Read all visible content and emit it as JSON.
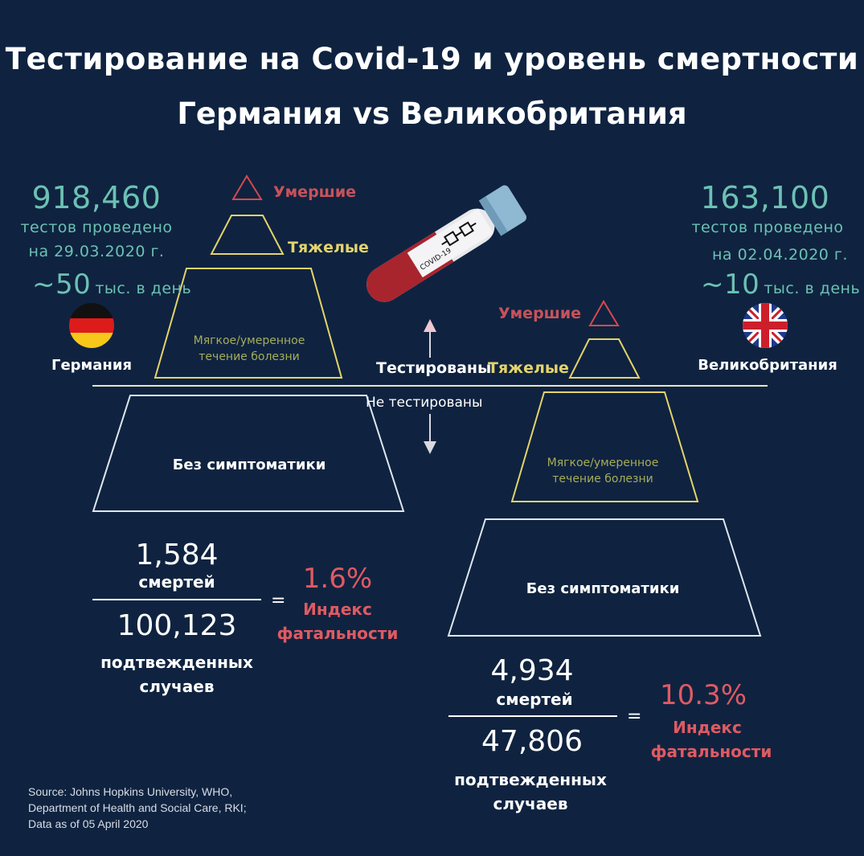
{
  "title": {
    "line1": "Тестирование на Covid-19 и уровень смертности",
    "line2": "Германия vs Великобритания"
  },
  "germany": {
    "tests_number": "918,460",
    "tests_label": "тестов проведено",
    "tests_date": "на 29.03.2020 г.",
    "per_day_prefix": "~50",
    "per_day_suffix": "тыс. в день",
    "country": "Германия",
    "pyramid": {
      "dead": "Умершие",
      "severe": "Тяжелые",
      "mild": "Мягкое/умеренное\nтечение болезни",
      "asymptomatic": "Без симптоматики"
    },
    "deaths_number": "1,584",
    "deaths_label": "смертей",
    "cases_number": "100,123",
    "cases_label_1": "подтвежденных",
    "cases_label_2": "случаев",
    "equals": "=",
    "rate": "1.6%",
    "rate_label_1": "Индекс",
    "rate_label_2": "фатальности"
  },
  "uk": {
    "tests_number": "163,100",
    "tests_label": "тестов проведено",
    "tests_date": "на 02.04.2020 г.",
    "per_day_prefix": "~10",
    "per_day_suffix": "тыс. в день",
    "country": "Великобритания",
    "pyramid": {
      "dead": "Умершие",
      "severe": "Тяжелые",
      "mild": "Мягкое/умеренное\nтечение болезни",
      "asymptomatic": "Без симптоматики"
    },
    "deaths_number": "4,934",
    "deaths_label": "смертей",
    "cases_number": "47,806",
    "cases_label_1": "подтвежденных",
    "cases_label_2": "случаев",
    "equals": "=",
    "rate": "10.3%",
    "rate_label_1": "Индекс",
    "rate_label_2": "фатальности"
  },
  "divider": {
    "tested": "Тестированы",
    "not_tested": "Не тестированы"
  },
  "tube_label": "COVID-19",
  "source": {
    "line1": "Source: Johns Hopkins University, WHO,",
    "line2": "Department of Health and Social Care, RKI;",
    "line3": "Data as of 05 April 2020"
  },
  "icons": {
    "germany_flag": "flag-germany-icon",
    "uk_flag": "flag-uk-icon",
    "test_tube": "test-tube-icon",
    "arrow_up": "arrow-up-icon",
    "arrow_down": "arrow-down-icon"
  },
  "colors": {
    "background": "#0f2340",
    "teal": "#6cc1b3",
    "red": "#e05a62",
    "yellow": "#e4d36b",
    "dead_triangle": "#d8474f"
  }
}
